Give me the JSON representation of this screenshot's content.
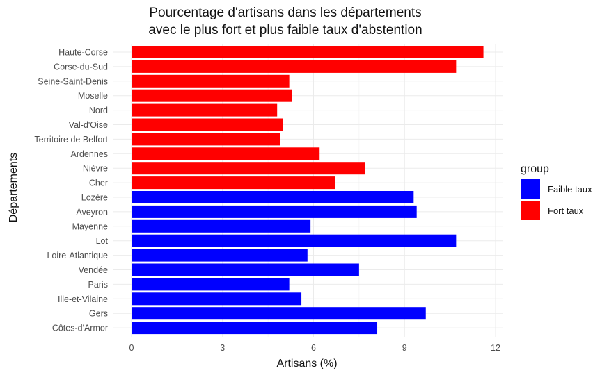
{
  "chart_data": {
    "type": "bar",
    "orientation": "horizontal",
    "title_lines": [
      "Pourcentage d'artisans dans les départements",
      "avec le plus fort et plus faible taux d'abstention"
    ],
    "xlabel": "Artisans (%)",
    "ylabel": "Départements",
    "xlim": [
      0,
      12
    ],
    "xticks": [
      0,
      3,
      6,
      9,
      12
    ],
    "grid": true,
    "legend": {
      "title": "group",
      "placement": "right",
      "entries": [
        {
          "label": "Faible taux",
          "color": "#0000ff"
        },
        {
          "label": "Fort taux",
          "color": "#ff0000"
        }
      ]
    },
    "bars": [
      {
        "category": "Haute-Corse",
        "value": 11.6,
        "group": "Fort taux"
      },
      {
        "category": "Corse-du-Sud",
        "value": 10.7,
        "group": "Fort taux"
      },
      {
        "category": "Seine-Saint-Denis",
        "value": 5.2,
        "group": "Fort taux"
      },
      {
        "category": "Moselle",
        "value": 5.3,
        "group": "Fort taux"
      },
      {
        "category": "Nord",
        "value": 4.8,
        "group": "Fort taux"
      },
      {
        "category": "Val-d'Oise",
        "value": 5.0,
        "group": "Fort taux"
      },
      {
        "category": "Territoire de Belfort",
        "value": 4.9,
        "group": "Fort taux"
      },
      {
        "category": "Ardennes",
        "value": 6.2,
        "group": "Fort taux"
      },
      {
        "category": "Nièvre",
        "value": 7.7,
        "group": "Fort taux"
      },
      {
        "category": "Cher",
        "value": 6.7,
        "group": "Fort taux"
      },
      {
        "category": "Lozère",
        "value": 9.3,
        "group": "Faible taux"
      },
      {
        "category": "Aveyron",
        "value": 9.4,
        "group": "Faible taux"
      },
      {
        "category": "Mayenne",
        "value": 5.9,
        "group": "Faible taux"
      },
      {
        "category": "Lot",
        "value": 10.7,
        "group": "Faible taux"
      },
      {
        "category": "Loire-Atlantique",
        "value": 5.8,
        "group": "Faible taux"
      },
      {
        "category": "Vendée",
        "value": 7.5,
        "group": "Faible taux"
      },
      {
        "category": "Paris",
        "value": 5.2,
        "group": "Faible taux"
      },
      {
        "category": "Ille-et-Vilaine",
        "value": 5.6,
        "group": "Faible taux"
      },
      {
        "category": "Gers",
        "value": 9.7,
        "group": "Faible taux"
      },
      {
        "category": "Côtes-d'Armor",
        "value": 8.1,
        "group": "Faible taux"
      }
    ]
  }
}
